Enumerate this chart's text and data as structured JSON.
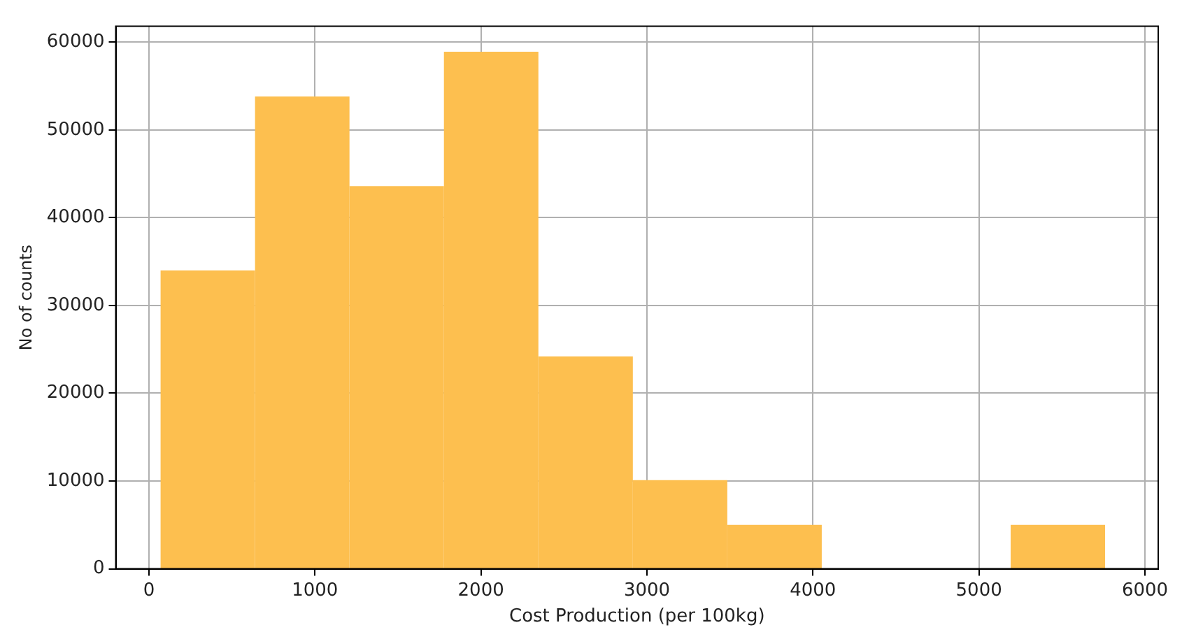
{
  "chart_data": {
    "type": "histogram",
    "xlabel": "Cost Production (per 100kg)",
    "ylabel": "No of counts",
    "bins": [
      70,
      639,
      1208,
      1777,
      2346,
      2915,
      3484,
      4053,
      4622,
      5191,
      5760
    ],
    "values": [
      34000,
      53800,
      43600,
      58900,
      24200,
      10100,
      5000,
      0,
      0,
      5000
    ],
    "color": "#fdbf4f",
    "xlim": [
      -200,
      6080
    ],
    "xticks": [
      0,
      1000,
      2000,
      3000,
      4000,
      5000,
      6000
    ],
    "ylim": [
      0,
      61800
    ],
    "yticks": [
      0,
      10000,
      20000,
      30000,
      40000,
      50000,
      60000
    ],
    "grid": true
  }
}
